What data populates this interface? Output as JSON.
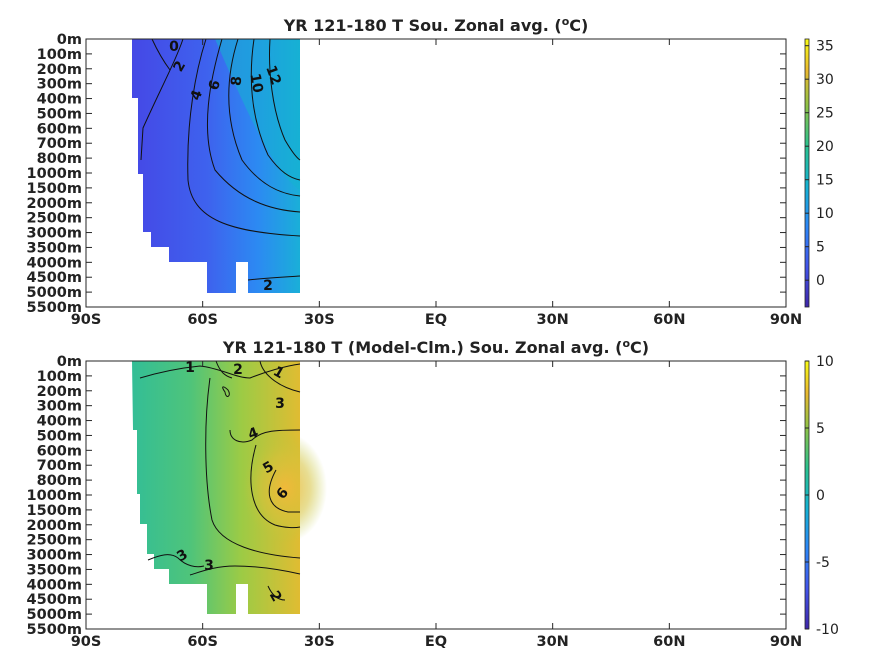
{
  "chart_data": [
    {
      "type": "heatmap",
      "title": "YR 121-180 T Sou. Zonal avg. (",
      "title_sup": "o",
      "title_suffix": "C)",
      "x_ticks": [
        "90S",
        "60S",
        "30S",
        "EQ",
        "30N",
        "60N",
        "90N"
      ],
      "y_ticks": [
        "0m",
        "100m",
        "200m",
        "300m",
        "400m",
        "500m",
        "600m",
        "700m",
        "800m",
        "1000m",
        "1500m",
        "2000m",
        "2500m",
        "3000m",
        "3500m",
        "4000m",
        "4500m",
        "5000m",
        "5500m"
      ],
      "colorbar": {
        "min": -4,
        "max": 36,
        "ticks": [
          "35",
          "30",
          "25",
          "20",
          "15",
          "10",
          "5",
          "0"
        ],
        "tick_values": [
          35,
          30,
          25,
          20,
          15,
          10,
          5,
          0
        ]
      },
      "data_extent_latitude": [
        -78,
        -34
      ],
      "contour_labels": [
        "0",
        "2",
        "4",
        "6",
        "8",
        "10",
        "12",
        "2"
      ],
      "contour_levels": [
        0,
        2,
        4,
        6,
        8,
        10,
        12,
        2
      ],
      "grid": false
    },
    {
      "type": "heatmap",
      "title": "YR 121-180 T (Model-Clm.) Sou. Zonal avg. (",
      "title_sup": "o",
      "title_suffix": "C)",
      "x_ticks": [
        "90S",
        "60S",
        "30S",
        "EQ",
        "30N",
        "60N",
        "90N"
      ],
      "y_ticks": [
        "0m",
        "100m",
        "200m",
        "300m",
        "400m",
        "500m",
        "600m",
        "700m",
        "800m",
        "1000m",
        "1500m",
        "2000m",
        "2500m",
        "3000m",
        "3500m",
        "4000m",
        "4500m",
        "5000m",
        "5500m"
      ],
      "colorbar": {
        "min": -10,
        "max": 10,
        "ticks": [
          "10",
          "5",
          "0",
          "-5",
          "-10"
        ],
        "tick_values": [
          10,
          5,
          0,
          -5,
          -10
        ]
      },
      "data_extent_latitude": [
        -78,
        -34
      ],
      "contour_labels": [
        "1",
        "2",
        "1",
        "3",
        "4",
        "5",
        "6",
        "3",
        "3",
        "2"
      ],
      "contour_levels": [
        1,
        2,
        1,
        3,
        4,
        5,
        6,
        3,
        3,
        2
      ],
      "grid": false
    }
  ]
}
